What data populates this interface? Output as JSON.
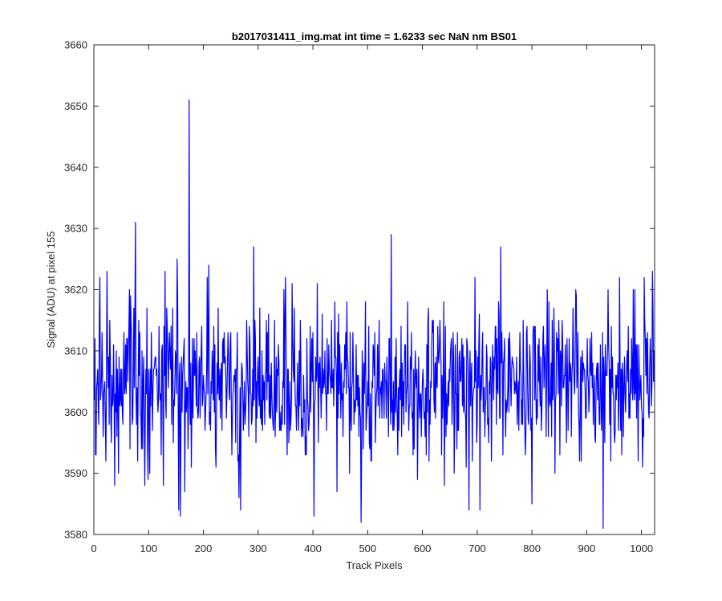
{
  "chart_data": {
    "type": "line",
    "title": "b2017031411_img.mat int time = 1.6233 sec  NaN nm BS01",
    "xlabel": "Track Pixels",
    "ylabel": "Signal (ADU) at pixel 155",
    "xlim": [
      0,
      1024
    ],
    "ylim": [
      3580,
      3660
    ],
    "xticks": [
      0,
      100,
      200,
      300,
      400,
      500,
      600,
      700,
      800,
      900,
      1000
    ],
    "yticks": [
      3580,
      3590,
      3600,
      3610,
      3620,
      3630,
      3640,
      3650,
      3660
    ],
    "grid": false,
    "line_color": "#0000ff",
    "series": [
      {
        "x_start": 1,
        "x_step": 1,
        "length": 1024,
        "mean": 3604.5,
        "approx_range": [
          3581,
          3651
        ],
        "notable_points": [
          {
            "x": 2,
            "y": 3612
          },
          {
            "x": 4,
            "y": 3593
          },
          {
            "x": 10,
            "y": 3616
          },
          {
            "x": 24,
            "y": 3623
          },
          {
            "x": 22,
            "y": 3592
          },
          {
            "x": 38,
            "y": 3588
          },
          {
            "x": 76,
            "y": 3631
          },
          {
            "x": 93,
            "y": 3588
          },
          {
            "x": 130,
            "y": 3623
          },
          {
            "x": 152,
            "y": 3625
          },
          {
            "x": 155,
            "y": 3584
          },
          {
            "x": 158,
            "y": 3583
          },
          {
            "x": 174,
            "y": 3651
          },
          {
            "x": 178,
            "y": 3591
          },
          {
            "x": 210,
            "y": 3624
          },
          {
            "x": 265,
            "y": 3586
          },
          {
            "x": 268,
            "y": 3584
          },
          {
            "x": 292,
            "y": 3627
          },
          {
            "x": 350,
            "y": 3622
          },
          {
            "x": 402,
            "y": 3583
          },
          {
            "x": 488,
            "y": 3582
          },
          {
            "x": 543,
            "y": 3629
          },
          {
            "x": 640,
            "y": 3588
          },
          {
            "x": 685,
            "y": 3584
          },
          {
            "x": 705,
            "y": 3584
          },
          {
            "x": 743,
            "y": 3627
          },
          {
            "x": 800,
            "y": 3585
          },
          {
            "x": 880,
            "y": 3620
          },
          {
            "x": 930,
            "y": 3581
          },
          {
            "x": 960,
            "y": 3622
          },
          {
            "x": 985,
            "y": 3620
          },
          {
            "x": 1005,
            "y": 3622
          },
          {
            "x": 1020,
            "y": 3623
          }
        ]
      }
    ]
  }
}
